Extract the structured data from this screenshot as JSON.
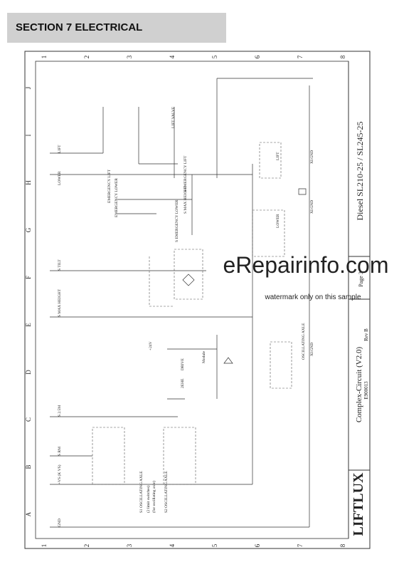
{
  "header": {
    "title": "SECTION 7   ELECTRICAL"
  },
  "frame": {
    "columns": [
      "1",
      "2",
      "3",
      "4",
      "5",
      "6",
      "7",
      "8"
    ],
    "rows": [
      "A",
      "B",
      "C",
      "D",
      "E",
      "F",
      "G",
      "H",
      "I",
      "J"
    ]
  },
  "title_block": {
    "company": "LIFTLUX",
    "drawing": "Complex-Circuit (V2.0)",
    "number": "E900013",
    "revision": "Rev B",
    "model": "Diesel SL210-25 / SL245-25",
    "page": "Page 3"
  },
  "watermark": {
    "site": "eRepairinfo.com",
    "note": "watermark only on this sample"
  },
  "labels": [
    "GND",
    "+VS (K VS)",
    "S RM",
    "S 2.5M",
    "S MAX HEIGHT",
    "S TILT",
    "LOWER",
    "LIFT",
    "S1 OSCILLATING AXLE",
    "(2 limit switches)",
    "(for oscillating axle)",
    "S2 OSCILLATING AXLE",
    "EMERGENCY LIFT",
    "EMERGENCY LOWER",
    "S MAX HEIGHT",
    "S EMERGENCY LOWER",
    "S EMERGENCY LIFT",
    "LIFT VALVE",
    "Module",
    "DRIVE",
    "2EHE",
    "+24V",
    "OSCILLATING AXLE",
    "LOWER",
    "LIFT",
    "XI:GND",
    "XI:GND",
    "XI:GND"
  ]
}
